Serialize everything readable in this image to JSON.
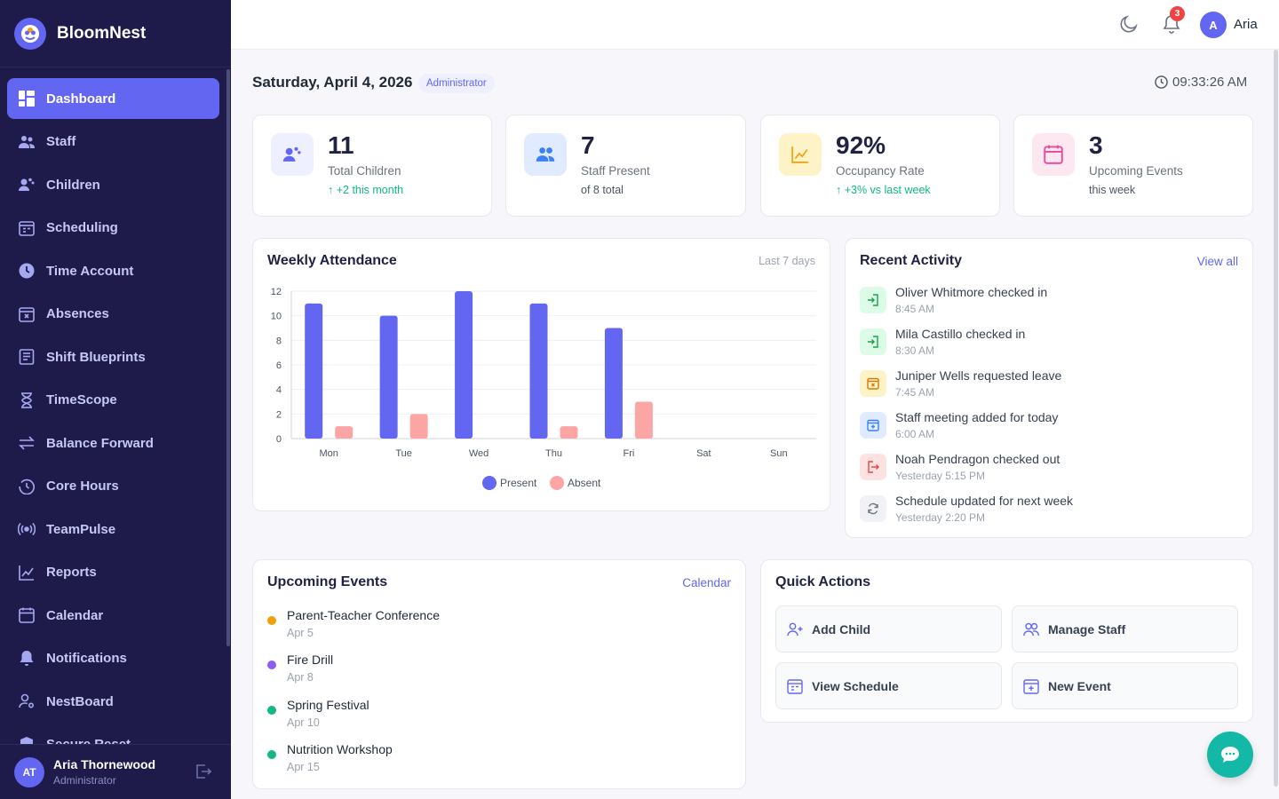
{
  "app": {
    "name": "BloomNest"
  },
  "sidebar": {
    "items": [
      {
        "label": "Dashboard",
        "icon": "dashboard-icon",
        "active": true
      },
      {
        "label": "Staff",
        "icon": "users-icon"
      },
      {
        "label": "Children",
        "icon": "children-icon"
      },
      {
        "label": "Scheduling",
        "icon": "scheduling-icon"
      },
      {
        "label": "Time Account",
        "icon": "clock-icon"
      },
      {
        "label": "Absences",
        "icon": "calendar-x-icon"
      },
      {
        "label": "Shift Blueprints",
        "icon": "blueprint-icon"
      },
      {
        "label": "TimeScope",
        "icon": "hourglass-icon"
      },
      {
        "label": "Balance Forward",
        "icon": "arrows-icon"
      },
      {
        "label": "Core Hours",
        "icon": "history-icon"
      },
      {
        "label": "TeamPulse",
        "icon": "broadcast-icon"
      },
      {
        "label": "Reports",
        "icon": "chart-icon"
      },
      {
        "label": "Calendar",
        "icon": "calendar-icon"
      },
      {
        "label": "Notifications",
        "icon": "bell-icon"
      },
      {
        "label": "NestBoard",
        "icon": "user-gear-icon"
      },
      {
        "label": "Secure Reset",
        "icon": "shield-icon"
      }
    ],
    "user": {
      "initials": "AT",
      "name": "Aria Thornewood",
      "role": "Administrator"
    }
  },
  "topbar": {
    "notification_count": "3",
    "user_initial": "A",
    "user_name": "Aria"
  },
  "header": {
    "date": "Saturday, April 4, 2026",
    "role": "Administrator",
    "time": "09:33:26 AM"
  },
  "stats": [
    {
      "value": "11",
      "label": "Total Children",
      "sub": "↑ +2 this month",
      "sub_green": true,
      "icon": "children-icon",
      "bg": "#eef0ff",
      "fg": "#6366f1"
    },
    {
      "value": "7",
      "label": "Staff Present",
      "sub": "of 8 total",
      "sub_green": false,
      "icon": "users-icon",
      "bg": "#e0ebff",
      "fg": "#3b82f6"
    },
    {
      "value": "92%",
      "label": "Occupancy Rate",
      "sub": "↑ +3% vs last week",
      "sub_green": true,
      "icon": "trend-icon",
      "bg": "#fdf3c7",
      "fg": "#f59e0b"
    },
    {
      "value": "3",
      "label": "Upcoming Events",
      "sub": "this week",
      "sub_green": false,
      "icon": "calendar-icon",
      "bg": "#fde7f0",
      "fg": "#ec4899"
    }
  ],
  "attendance": {
    "title": "Weekly Attendance",
    "range": "Last 7 days"
  },
  "chart_data": {
    "type": "bar",
    "title": "Weekly Attendance",
    "categories": [
      "Mon",
      "Tue",
      "Wed",
      "Thu",
      "Fri",
      "Sat",
      "Sun"
    ],
    "series": [
      {
        "name": "Present",
        "color": "#6366f1",
        "values": [
          11,
          10,
          12,
          11,
          9,
          0,
          0
        ]
      },
      {
        "name": "Absent",
        "color": "#fca5a5",
        "values": [
          1,
          2,
          0,
          1,
          3,
          0,
          0
        ]
      }
    ],
    "yticks": [
      0,
      2,
      4,
      6,
      8,
      10,
      12
    ],
    "ylim": [
      0,
      12
    ],
    "grid": true,
    "legend": "bottom"
  },
  "activity": {
    "title": "Recent Activity",
    "link": "View all",
    "items": [
      {
        "text": "Oliver Whitmore checked in",
        "time": "8:45 AM",
        "icon": "check-in-icon",
        "bg": "#dcfce7",
        "fg": "#16a34a"
      },
      {
        "text": "Mila Castillo checked in",
        "time": "8:30 AM",
        "icon": "check-in-icon",
        "bg": "#dcfce7",
        "fg": "#16a34a"
      },
      {
        "text": "Juniper Wells requested leave",
        "time": "7:45 AM",
        "icon": "leave-icon",
        "bg": "#fdf3c7",
        "fg": "#d97706"
      },
      {
        "text": "Staff meeting added for today",
        "time": "6:00 AM",
        "icon": "calendar-plus-icon",
        "bg": "#e0ebff",
        "fg": "#3b82f6"
      },
      {
        "text": "Noah Pendragon checked out",
        "time": "Yesterday 5:15 PM",
        "icon": "check-out-icon",
        "bg": "#fde2e2",
        "fg": "#ef4444"
      },
      {
        "text": "Schedule updated for next week",
        "time": "Yesterday 2:20 PM",
        "icon": "refresh-icon",
        "bg": "#f1f2f6",
        "fg": "#6b7280"
      }
    ]
  },
  "events": {
    "title": "Upcoming Events",
    "link": "Calendar",
    "items": [
      {
        "title": "Parent-Teacher Conference",
        "date": "Apr 5",
        "color": "#f59e0b"
      },
      {
        "title": "Fire Drill",
        "date": "Apr 8",
        "color": "#8b5cf6"
      },
      {
        "title": "Spring Festival",
        "date": "Apr 10",
        "color": "#10b981"
      },
      {
        "title": "Nutrition Workshop",
        "date": "Apr 15",
        "color": "#10b981"
      }
    ]
  },
  "quick_actions": {
    "title": "Quick Actions",
    "items": [
      {
        "label": "Add Child",
        "icon": "add-user-icon"
      },
      {
        "label": "Manage Staff",
        "icon": "users-icon"
      },
      {
        "label": "View Schedule",
        "icon": "scheduling-icon"
      },
      {
        "label": "New Event",
        "icon": "calendar-plus-icon"
      }
    ]
  }
}
